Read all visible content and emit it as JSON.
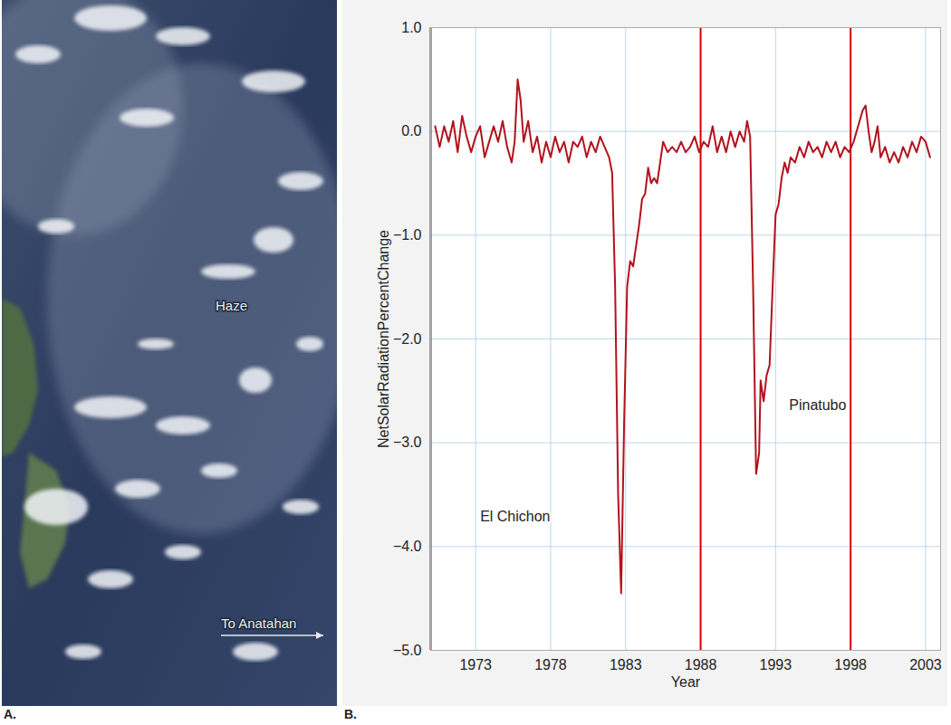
{
  "photo": {
    "letter": "A.",
    "labels": [
      "Haze",
      "To Anatahan"
    ]
  },
  "chart_data": {
    "letter": "B.",
    "type": "line",
    "xlabel": "Year",
    "ylabel": "NetSolarRadiationPercentChange",
    "xlim": [
      1970,
      2004
    ],
    "xticks": [
      1973,
      1978,
      1983,
      1988,
      1993,
      1998,
      2003
    ],
    "ylim": [
      -5,
      1
    ],
    "yticks": [
      -5,
      -4,
      -3,
      -2,
      -1,
      0,
      1
    ],
    "grid": true,
    "color": "#b3121d",
    "vlines": {
      "values": [
        1970,
        1988,
        1998
      ],
      "color": "#d40000"
    },
    "annotations": [
      {
        "text": "El Chichon",
        "x": 1973.3,
        "y": -3.71
      },
      {
        "text": "Pinatubo",
        "x": 1993.9,
        "y": -2.64
      }
    ],
    "x": [
      1970.3,
      1970.6,
      1970.9,
      1971.2,
      1971.5,
      1971.8,
      1972.1,
      1972.4,
      1972.7,
      1973.0,
      1973.3,
      1973.6,
      1973.9,
      1974.2,
      1974.5,
      1974.8,
      1975.1,
      1975.4,
      1975.6,
      1975.8,
      1976.0,
      1976.2,
      1976.5,
      1976.8,
      1977.1,
      1977.4,
      1977.7,
      1978.0,
      1978.3,
      1978.6,
      1978.9,
      1979.2,
      1979.5,
      1979.8,
      1980.1,
      1980.4,
      1980.7,
      1981.0,
      1981.3,
      1981.6,
      1981.9,
      1982.1,
      1982.3,
      1982.5,
      1982.7,
      1982.9,
      1983.1,
      1983.3,
      1983.5,
      1983.7,
      1983.9,
      1984.1,
      1984.3,
      1984.5,
      1984.7,
      1984.9,
      1985.1,
      1985.3,
      1985.5,
      1985.8,
      1986.1,
      1986.4,
      1986.7,
      1987.0,
      1987.3,
      1987.6,
      1987.9,
      1988.2,
      1988.5,
      1988.8,
      1989.1,
      1989.4,
      1989.7,
      1990.0,
      1990.3,
      1990.6,
      1990.9,
      1991.1,
      1991.3,
      1991.5,
      1991.7,
      1991.9,
      1992.0,
      1992.2,
      1992.4,
      1992.6,
      1992.8,
      1993.0,
      1993.2,
      1993.4,
      1993.6,
      1993.8,
      1994.0,
      1994.3,
      1994.6,
      1994.9,
      1995.2,
      1995.5,
      1995.8,
      1996.1,
      1996.4,
      1996.7,
      1997.0,
      1997.3,
      1997.6,
      1997.9,
      1998.2,
      1998.5,
      1998.8,
      1999.0,
      1999.2,
      1999.4,
      1999.6,
      1999.8,
      2000.0,
      2000.3,
      2000.6,
      2000.9,
      2001.2,
      2001.5,
      2001.8,
      2002.1,
      2002.4,
      2002.7,
      2003.0,
      2003.3
    ],
    "values": [
      0.05,
      -0.15,
      0.05,
      -0.1,
      0.1,
      -0.2,
      0.15,
      -0.05,
      -0.2,
      -0.05,
      0.05,
      -0.25,
      -0.1,
      0.05,
      -0.1,
      0.1,
      -0.15,
      -0.3,
      -0.1,
      0.5,
      0.3,
      -0.1,
      0.1,
      -0.2,
      -0.05,
      -0.3,
      -0.1,
      -0.25,
      -0.05,
      -0.2,
      -0.1,
      -0.3,
      -0.1,
      -0.15,
      -0.05,
      -0.25,
      -0.1,
      -0.2,
      -0.05,
      -0.15,
      -0.25,
      -0.4,
      -1.5,
      -3.5,
      -4.45,
      -2.8,
      -1.5,
      -1.25,
      -1.3,
      -1.1,
      -0.9,
      -0.65,
      -0.6,
      -0.35,
      -0.5,
      -0.45,
      -0.5,
      -0.3,
      -0.1,
      -0.2,
      -0.15,
      -0.2,
      -0.1,
      -0.2,
      -0.15,
      -0.05,
      -0.2,
      -0.1,
      -0.15,
      0.05,
      -0.2,
      -0.05,
      -0.2,
      0,
      -0.15,
      0,
      -0.1,
      0.1,
      -0.05,
      -1.5,
      -3.3,
      -3.1,
      -2.4,
      -2.6,
      -2.35,
      -2.25,
      -1.5,
      -0.8,
      -0.7,
      -0.45,
      -0.3,
      -0.4,
      -0.25,
      -0.3,
      -0.15,
      -0.25,
      -0.1,
      -0.2,
      -0.15,
      -0.25,
      -0.1,
      -0.2,
      -0.1,
      -0.25,
      -0.15,
      -0.2,
      -0.1,
      0.05,
      0.2,
      0.25,
      0,
      -0.2,
      -0.1,
      0.05,
      -0.25,
      -0.15,
      -0.3,
      -0.2,
      -0.3,
      -0.15,
      -0.25,
      -0.1,
      -0.2,
      -0.05,
      -0.1,
      -0.25
    ]
  }
}
